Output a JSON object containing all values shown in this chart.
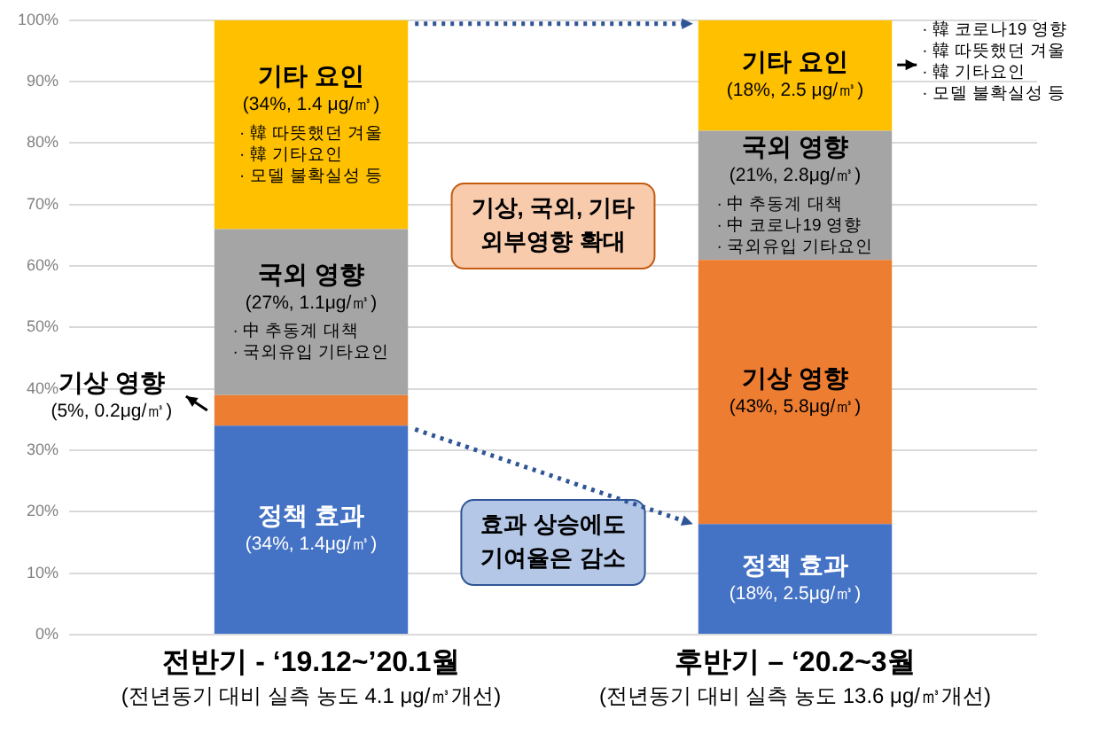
{
  "chart_data": {
    "type": "bar",
    "stacked": true,
    "categories": [
      "전반기 - ‘19.12~’20.1월\n(전년동기 대비 실측 농도 4.1 μg/㎥개선)",
      "후반기 – ‘20.2~3월\n(전년동기 대비 실측 농도 13.6 μg/㎥개선)"
    ],
    "ylim": [
      0,
      100
    ],
    "yticks": [
      {
        "value": 0,
        "label": "0%"
      },
      {
        "value": 10,
        "label": "10%"
      },
      {
        "value": 20,
        "label": "20%"
      },
      {
        "value": 30,
        "label": "30%"
      },
      {
        "value": 40,
        "label": "40%"
      },
      {
        "value": 50,
        "label": "50%"
      },
      {
        "value": 60,
        "label": "60%"
      },
      {
        "value": 70,
        "label": "70%"
      },
      {
        "value": 80,
        "label": "80%"
      },
      {
        "value": 90,
        "label": "90%"
      },
      {
        "value": 100,
        "label": "100%"
      }
    ],
    "grid": "y",
    "legend": false,
    "series": [
      {
        "name": "정책 효과",
        "color": "#4472c4",
        "values": [
          34,
          18
        ],
        "value_labels": [
          "(34%, 1.4μg/㎥)",
          "(18%, 2.5μg/㎥)"
        ]
      },
      {
        "name": "기상 영향",
        "color": "#ed7d31",
        "values": [
          5,
          43
        ],
        "value_labels": [
          "(5%, 0.2μg/㎥)",
          "(43%, 5.8μg/㎥)"
        ]
      },
      {
        "name": "국외 영향",
        "color": "#a5a5a5",
        "values": [
          27,
          21
        ],
        "value_labels": [
          "(27%, 1.1μg/㎥)",
          "(21%, 2.8μg/㎥)"
        ]
      },
      {
        "name": "기타 요인",
        "color": "#ffc000",
        "values": [
          34,
          18
        ],
        "value_labels": [
          "(34%, 1.4 μg/㎥)",
          "(18%, 2.5 μg/㎥)"
        ]
      }
    ],
    "annotations": [
      "· 韓 따뜻했던 겨울\n· 韓 기타요인\n· 모델 불확실성 등",
      "· 中 추동계 대책\n· 국외유입 기타요인",
      "· 中 추동계 대책\n· 中 코로나19 영향\n· 국외유입 기타요인",
      "· 韓 코로나19 영향\n· 韓 따뜻했던 겨울\n· 韓 기타요인\n· 모델 불확실성 등",
      "기상, 국외, 기타\n외부영향 확대",
      "효과 상승에도\n기여율은 감소"
    ]
  }
}
